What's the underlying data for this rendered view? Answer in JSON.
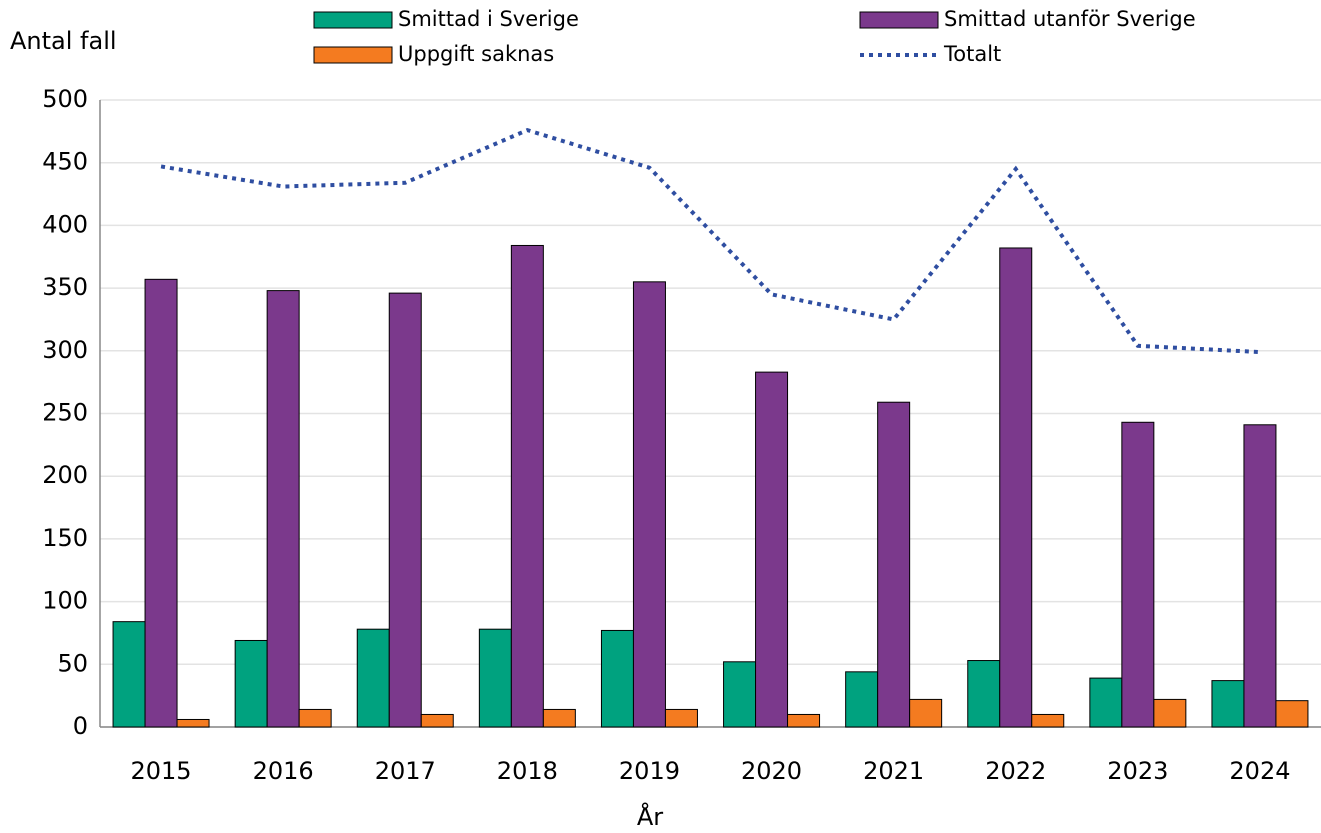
{
  "chart_data": {
    "type": "bar",
    "y_label": "Antal fall",
    "x_label": "År",
    "categories": [
      "2015",
      "2016",
      "2017",
      "2018",
      "2019",
      "2020",
      "2021",
      "2022",
      "2023",
      "2024"
    ],
    "series": [
      {
        "name": "Smittad i Sverige",
        "type": "bar",
        "color": "#00a27f",
        "values": [
          84,
          69,
          78,
          78,
          77,
          52,
          44,
          53,
          39,
          37
        ]
      },
      {
        "name": "Smittad utanför Sverige",
        "type": "bar",
        "color": "#7b398c",
        "values": [
          357,
          348,
          346,
          384,
          355,
          283,
          259,
          382,
          243,
          241
        ]
      },
      {
        "name": "Uppgift saknas",
        "type": "bar",
        "color": "#f47b20",
        "values": [
          6,
          14,
          10,
          14,
          14,
          10,
          22,
          10,
          22,
          21
        ]
      },
      {
        "name": "Totalt",
        "type": "line",
        "style": "dotted",
        "color": "#2f4ea1",
        "values": [
          447,
          431,
          434,
          476,
          446,
          345,
          325,
          445,
          304,
          299
        ]
      }
    ],
    "ylim": [
      0,
      500
    ],
    "yticks": [
      0,
      50,
      100,
      150,
      200,
      250,
      300,
      350,
      400,
      450,
      500
    ],
    "grid": true
  }
}
